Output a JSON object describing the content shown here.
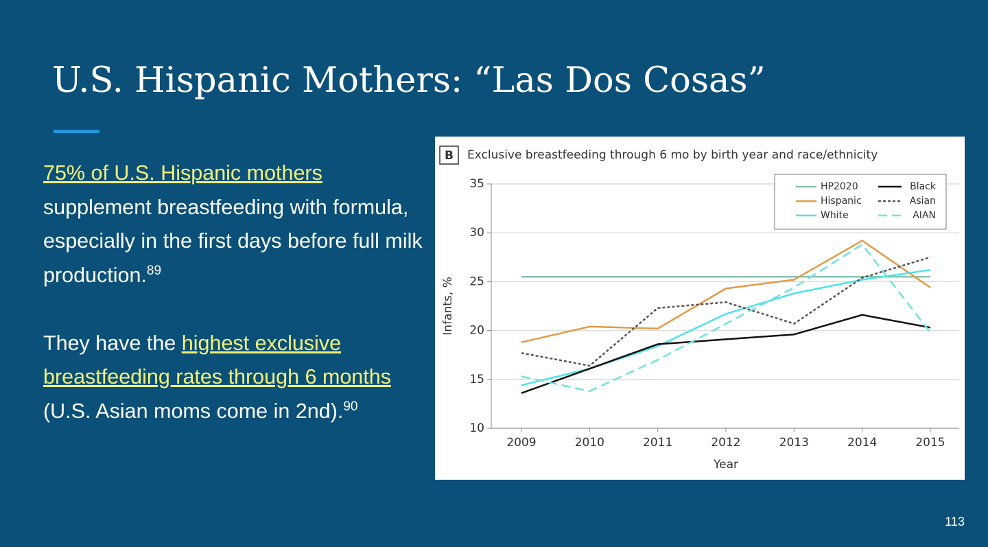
{
  "slide": {
    "title": "U.S. Hispanic Mothers: “Las Dos Cosas”",
    "paragraphs": [
      {
        "before": "",
        "link": "75% of U.S. Hispanic mothers",
        "after": "supplement breastfeeding with formula, especially in the first days before full milk production.",
        "ref": "89"
      },
      {
        "before": "They have the",
        "link": "highest exclusive breastfeeding rates through 6 months",
        "after": "(U.S. Asian moms come in 2nd).",
        "ref": "90"
      }
    ],
    "page_number": "113"
  },
  "chart_data": {
    "type": "line",
    "panel_label": "B",
    "title": "Exclusive breastfeeding through 6 mo by birth year and race/ethnicity",
    "x_label": "Year",
    "y_label": "Infants, %",
    "categories": [
      "2009",
      "2010",
      "2011",
      "2012",
      "2013",
      "2014",
      "2015"
    ],
    "ylim": [
      10,
      35
    ],
    "yticks": [
      10,
      15,
      20,
      25,
      30,
      35
    ],
    "grid": true,
    "series": [
      {
        "name": "HP2020",
        "color": "#86c4b4",
        "dash": "solid",
        "values": [
          25.5,
          25.5,
          25.5,
          25.5,
          25.5,
          25.5,
          25.5
        ]
      },
      {
        "name": "Hispanic",
        "color": "#e39a45",
        "dash": "solid",
        "values": [
          18.8,
          20.4,
          20.2,
          24.3,
          25.2,
          29.2,
          24.4
        ]
      },
      {
        "name": "White",
        "color": "#4de3e6",
        "dash": "solid",
        "values": [
          14.4,
          16.1,
          18.4,
          21.7,
          23.8,
          25.2,
          26.2
        ]
      },
      {
        "name": "Black",
        "color": "#111111",
        "dash": "solid",
        "values": [
          13.6,
          16.1,
          18.6,
          19.1,
          19.6,
          21.6,
          20.3
        ]
      },
      {
        "name": "Asian",
        "color": "#555555",
        "dash": "short",
        "values": [
          17.7,
          16.4,
          22.3,
          22.9,
          20.7,
          25.4,
          27.5
        ]
      },
      {
        "name": "AIAN",
        "color": "#6fe2e2",
        "dash": "long",
        "values": [
          15.3,
          13.8,
          17.0,
          20.7,
          24.4,
          28.8,
          19.8
        ]
      }
    ]
  }
}
